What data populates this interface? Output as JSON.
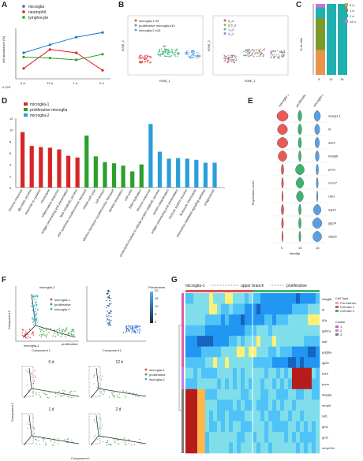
{
  "panel_letters": {
    "a": "A",
    "b": "B",
    "c": "C",
    "d": "D",
    "e": "E",
    "f": "F",
    "g": "G"
  },
  "panelA": {
    "ylabel": "cell abundance (%)",
    "ymin_label": "0.125",
    "categories": [
      "0 d",
      "12 h",
      "1 d",
      "2 d"
    ],
    "series": [
      {
        "name": "microglia",
        "color": "#1f78c8",
        "values": [
          0.55,
          0.72,
          0.88,
          0.98
        ]
      },
      {
        "name": "neutrophil",
        "color": "#e02020",
        "values": [
          0.22,
          0.62,
          0.55,
          0.18
        ]
      },
      {
        "name": "lymphocyte",
        "color": "#2ca02c",
        "values": [
          0.46,
          0.44,
          0.4,
          0.52
        ]
      }
    ]
  },
  "panelB": {
    "legend_left": [
      {
        "label": "microglia-1 #9",
        "color": "#e05050"
      },
      {
        "label": "proliferative microglia #10",
        "color": "#3cb371"
      },
      {
        "label": "microglia-2 #16",
        "color": "#5aa0e0"
      }
    ],
    "legend_right": [
      {
        "label": "0_d",
        "color": "#e05050"
      },
      {
        "label": "0.5_d",
        "color": "#8bbf40"
      },
      {
        "label": "1_d",
        "color": "#40c0c0"
      },
      {
        "label": "2_d",
        "color": "#b070e0"
      }
    ],
    "xlabel_left": "tSNE_1",
    "ylabel_left": "tSNE_2",
    "xlabel_right": "tSNE_1",
    "ylabel_right": "tSNE_2",
    "cluster_labels": [
      "9",
      "10",
      "16"
    ]
  },
  "panelC": {
    "ylabel": "% of cells",
    "categories": [
      "9",
      "10",
      "16"
    ],
    "legend": [
      {
        "label": "0 d",
        "color": "#e8954a"
      },
      {
        "label": "1 d",
        "color": "#7a9a2a"
      },
      {
        "label": "2 d",
        "color": "#20b0b0"
      },
      {
        "label": "12 h",
        "color": "#d070e0"
      }
    ]
  },
  "panelD": {
    "legend": [
      {
        "label": "microglia-1",
        "color": "#d62728"
      },
      {
        "label": "proliferative microglia",
        "color": "#2ca02c"
      },
      {
        "label": "microglia-2",
        "color": "#2b9fd9"
      }
    ],
    "bars": [
      {
        "label": "immune response",
        "value": 9.6,
        "group": 0
      },
      {
        "label": "glycolytic process",
        "value": 7.2,
        "group": 0
      },
      {
        "label": "response to cytokine",
        "value": 7.0,
        "group": 0
      },
      {
        "label": "chemotaxis",
        "value": 6.9,
        "group": 0
      },
      {
        "label": "inflammatory response",
        "value": 6.6,
        "group": 0
      },
      {
        "label": "antigen processing and presentation",
        "value": 5.5,
        "group": 0
      },
      {
        "label": "lipid metabolic process",
        "value": 5.2,
        "group": 0
      },
      {
        "label": "ATP synthesis coupled proton transport",
        "value": 9.0,
        "group": 1
      },
      {
        "label": "mitotic cell cycle",
        "value": 5.4,
        "group": 1
      },
      {
        "label": "cell division",
        "value": 4.4,
        "group": 1
      },
      {
        "label": "electron transport coupled proton transport",
        "value": 4.2,
        "group": 1
      },
      {
        "label": "aerobic respiration",
        "value": 3.8,
        "group": 1
      },
      {
        "label": "cell cycle",
        "value": 2.8,
        "group": 1
      },
      {
        "label": "DNA replication",
        "value": 4.0,
        "group": 1
      },
      {
        "label": "immune response",
        "value": 11.0,
        "group": 2
      },
      {
        "label": "proteolysis involved in cellular protein catabolic process",
        "value": 6.2,
        "group": 2
      },
      {
        "label": "protein ubiquitination",
        "value": 5.0,
        "group": 2
      },
      {
        "label": "antigen processing and presentation",
        "value": 5.1,
        "group": 2
      },
      {
        "label": "immune system process",
        "value": 5.0,
        "group": 2
      },
      {
        "label": "leukocyte chemotaxis",
        "value": 4.8,
        "group": 2
      },
      {
        "label": "chemokine-mediated signaling pathway",
        "value": 4.3,
        "group": 2
      },
      {
        "label": "phagocytosis",
        "value": 4.3,
        "group": 2
      }
    ],
    "yticks": [
      "0",
      "2",
      "4",
      "6",
      "8",
      "10",
      "12"
    ]
  },
  "panelE": {
    "ylabel": "Expression Level",
    "xlabel": "Identity",
    "columns": [
      "microglia-1",
      "proliferative",
      "microglia-2"
    ],
    "xticks": [
      "9",
      "10",
      "16"
    ],
    "genes": [
      "mpeg1.1",
      "ifi",
      "adx4",
      "hbegfb",
      "pcna",
      "mcm7",
      "cdk1",
      "lsg15",
      "gig24",
      "slfpbb"
    ]
  },
  "panelF": {
    "top_legend": [
      "microglia-1",
      "proliferative",
      "microglia-2"
    ],
    "legend_colors": [
      "#e04040",
      "#40a040",
      "#40b0c0"
    ],
    "pseudotime_label": "Pseudotime",
    "pseudotime_ticks": [
      "0",
      "5",
      "10",
      "15",
      "20"
    ],
    "component1": "Component 1",
    "component2": "Component 2",
    "branch_labels": {
      "mg2": "microglia-2",
      "mg1": "microglia-1",
      "prol": "proliferative"
    },
    "time_panels": [
      "0 d",
      "12 h",
      "1 d",
      "2 d"
    ]
  },
  "panelG": {
    "arrow_left": "microglia-1",
    "arrow_mid": "upper branch",
    "arrow_right": "proliferative",
    "genes": [
      {
        "name": "hbegfb",
        "color": "#1a1aaa"
      },
      {
        "name": "ifi",
        "color": "#1a1aaa"
      },
      {
        "name": "il1b",
        "color": "#1a1aaa"
      },
      {
        "name": "tgfb1a",
        "color": "#1a1aaa"
      },
      {
        "name": "txfb",
        "color": "#e02020"
      },
      {
        "name": "pdgfba",
        "color": "#1a1aaa"
      },
      {
        "name": "igf2b",
        "color": "#1a1aaa"
      },
      {
        "name": "bdnf",
        "color": "#1a1aaa"
      },
      {
        "name": "pcna",
        "color": "#222222"
      },
      {
        "name": "hbegfa",
        "color": "#222222"
      },
      {
        "name": "mmp9",
        "color": "#e02020"
      },
      {
        "name": "txfb",
        "color": "#e02020"
      },
      {
        "name": "grn1",
        "color": "#222222"
      },
      {
        "name": "grn2",
        "color": "#222222"
      },
      {
        "name": "mmp13a",
        "color": "#e02020"
      }
    ],
    "legend_title_celltype": "Cell Type",
    "legend_title_cluster": "Cluster",
    "legend_items": [
      "Pre-branch",
      "Cell fate 1",
      "Cell fate 2"
    ],
    "cluster_items": [
      "1",
      "2",
      "3"
    ]
  }
}
